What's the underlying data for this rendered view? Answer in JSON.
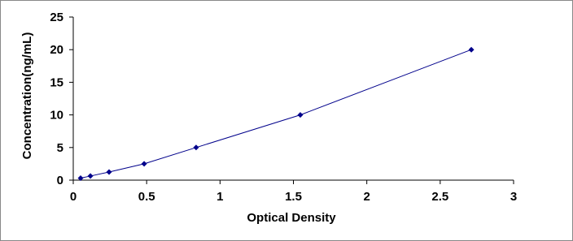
{
  "chart_data": {
    "type": "scatter",
    "x_label": "Optical Density",
    "y_label": "Concentration(ng/mL)",
    "x": [
      0.05,
      0.117,
      0.244,
      0.483,
      0.837,
      1.547,
      2.712
    ],
    "values": [
      0.31,
      0.63,
      1.25,
      2.5,
      5,
      10,
      20
    ],
    "color": "#00008b",
    "line": true,
    "xlim": [
      0,
      3
    ],
    "xticks": [
      0,
      0.5,
      1,
      1.5,
      2,
      2.5,
      3
    ],
    "ylim": [
      0,
      25
    ],
    "yticks": [
      0,
      5,
      10,
      15,
      20,
      25
    ],
    "grid": false
  }
}
